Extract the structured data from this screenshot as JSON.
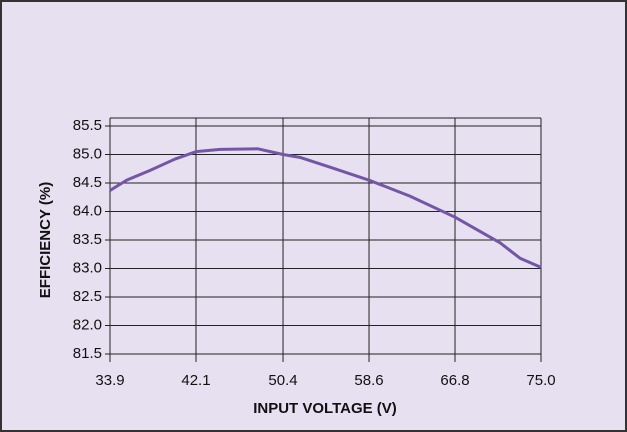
{
  "chart_data": {
    "type": "line",
    "xlabel": "INPUT VOLTAGE (V)",
    "ylabel": "EFFICIENCY (%)",
    "x": [
      33.9,
      35.5,
      37.7,
      40.1,
      42.1,
      44.4,
      48.0,
      50.4,
      52.0,
      55.0,
      58.6,
      62.5,
      66.8,
      71.1,
      73.0,
      75.0
    ],
    "series": [
      {
        "name": "Efficiency",
        "color": "#7456a6",
        "values": [
          84.37,
          84.55,
          84.72,
          84.92,
          85.05,
          85.09,
          85.1,
          85.0,
          84.95,
          84.77,
          84.55,
          84.27,
          83.9,
          83.45,
          83.18,
          83.02
        ]
      }
    ],
    "xlim": [
      33.9,
      75.0
    ],
    "xticks": [
      33.9,
      42.1,
      50.4,
      58.6,
      66.8,
      {
        "value": 75,
        "label": "75.0"
      }
    ],
    "ylim": [
      81.5,
      85.5
    ],
    "yticks": [
      85.5,
      {
        "value": 85,
        "label": "85.0"
      },
      84.5,
      {
        "value": 84,
        "label": "84.0"
      },
      83.5,
      {
        "value": 83,
        "label": "83.0"
      },
      82.5,
      {
        "value": 82,
        "label": "82.0"
      },
      81.5
    ],
    "grid": true
  }
}
